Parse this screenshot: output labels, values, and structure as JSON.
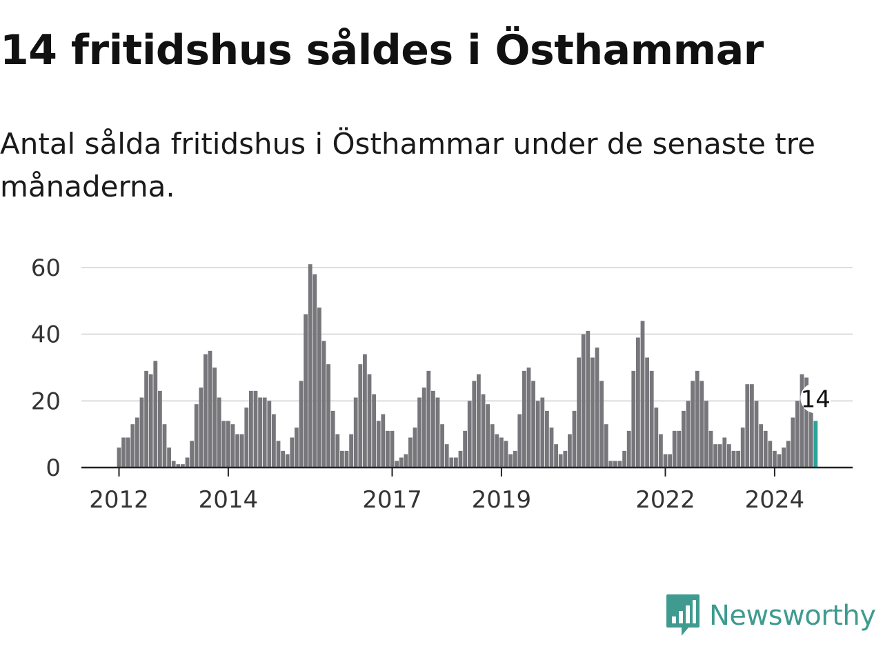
{
  "header": {
    "title": "14 fritidshus såldes i Östhammar",
    "subtitle": "Antal sålda fritidshus i Östhammar under de senaste tre månaderna."
  },
  "brand": {
    "name": "Newsworthy",
    "icon": "newsworthy-logo-icon",
    "color": "#3f9a8f"
  },
  "chart_data": {
    "type": "bar",
    "title": "14 fritidshus såldes i Östhammar",
    "subtitle": "Antal sålda fritidshus i Östhammar under de senaste tre månaderna.",
    "xlabel": "",
    "ylabel": "",
    "ylim": [
      0,
      60
    ],
    "yticks": [
      0,
      20,
      40,
      60
    ],
    "xtick_labels": [
      "2012",
      "2014",
      "2017",
      "2019",
      "2022",
      "2024"
    ],
    "grid": true,
    "legend": "none",
    "bar_color": "#77767b",
    "highlight_color": "#2aa39a",
    "callout": "14",
    "x": [
      "2012-01",
      "2012-02",
      "2012-03",
      "2012-04",
      "2012-05",
      "2012-06",
      "2012-07",
      "2012-08",
      "2012-09",
      "2012-10",
      "2012-11",
      "2012-12",
      "2013-01",
      "2013-02",
      "2013-03",
      "2013-04",
      "2013-05",
      "2013-06",
      "2013-07",
      "2013-08",
      "2013-09",
      "2013-10",
      "2013-11",
      "2013-12",
      "2014-01",
      "2014-02",
      "2014-03",
      "2014-04",
      "2014-05",
      "2014-06",
      "2014-07",
      "2014-08",
      "2014-09",
      "2014-10",
      "2014-11",
      "2014-12",
      "2015-01",
      "2015-02",
      "2015-03",
      "2015-04",
      "2015-05",
      "2015-06",
      "2015-07",
      "2015-08",
      "2015-09",
      "2015-10",
      "2015-11",
      "2015-12",
      "2016-01",
      "2016-02",
      "2016-03",
      "2016-04",
      "2016-05",
      "2016-06",
      "2016-07",
      "2016-08",
      "2016-09",
      "2016-10",
      "2016-11",
      "2016-12",
      "2017-01",
      "2017-02",
      "2017-03",
      "2017-04",
      "2017-05",
      "2017-06",
      "2017-07",
      "2017-08",
      "2017-09",
      "2017-10",
      "2017-11",
      "2017-12",
      "2018-01",
      "2018-02",
      "2018-03",
      "2018-04",
      "2018-05",
      "2018-06",
      "2018-07",
      "2018-08",
      "2018-09",
      "2018-10",
      "2018-11",
      "2018-12",
      "2019-01",
      "2019-02",
      "2019-03",
      "2019-04",
      "2019-05",
      "2019-06",
      "2019-07",
      "2019-08",
      "2019-09",
      "2019-10",
      "2019-11",
      "2019-12",
      "2020-01",
      "2020-02",
      "2020-03",
      "2020-04",
      "2020-05",
      "2020-06",
      "2020-07",
      "2020-08",
      "2020-09",
      "2020-10",
      "2020-11",
      "2020-12",
      "2021-01",
      "2021-02",
      "2021-03",
      "2021-04",
      "2021-05",
      "2021-06",
      "2021-07",
      "2021-08",
      "2021-09",
      "2021-10",
      "2021-11",
      "2021-12",
      "2022-01",
      "2022-02",
      "2022-03",
      "2022-04",
      "2022-05",
      "2022-06",
      "2022-07",
      "2022-08",
      "2022-09",
      "2022-10",
      "2022-11",
      "2022-12",
      "2023-01",
      "2023-02",
      "2023-03",
      "2023-04",
      "2023-05",
      "2023-06",
      "2023-07",
      "2023-08",
      "2023-09",
      "2023-10",
      "2023-11",
      "2023-12",
      "2024-01",
      "2024-02",
      "2024-03",
      "2024-04",
      "2024-05",
      "2024-06",
      "2024-07",
      "2024-08",
      "2024-09",
      "2024-10"
    ],
    "values": [
      6,
      9,
      9,
      13,
      15,
      21,
      29,
      28,
      32,
      23,
      13,
      6,
      2,
      1,
      1,
      3,
      8,
      19,
      24,
      34,
      35,
      30,
      21,
      14,
      14,
      13,
      10,
      10,
      18,
      23,
      23,
      21,
      21,
      20,
      16,
      8,
      5,
      4,
      9,
      12,
      26,
      46,
      61,
      58,
      48,
      38,
      31,
      17,
      10,
      5,
      5,
      10,
      21,
      31,
      34,
      28,
      22,
      14,
      16,
      11,
      11,
      2,
      3,
      4,
      9,
      12,
      21,
      24,
      29,
      23,
      21,
      13,
      7,
      3,
      3,
      5,
      11,
      20,
      26,
      28,
      22,
      19,
      13,
      10,
      9,
      8,
      4,
      5,
      16,
      29,
      30,
      26,
      20,
      21,
      17,
      12,
      7,
      4,
      5,
      10,
      17,
      33,
      40,
      41,
      33,
      36,
      26,
      13,
      2,
      2,
      2,
      5,
      11,
      29,
      39,
      44,
      33,
      29,
      18,
      10,
      4,
      4,
      11,
      11,
      17,
      20,
      26,
      29,
      26,
      20,
      11,
      7,
      7,
      9,
      7,
      5,
      5,
      12,
      25,
      25,
      20,
      13,
      11,
      8,
      5,
      4,
      6,
      8,
      15,
      20,
      28,
      27,
      20,
      14
    ]
  }
}
